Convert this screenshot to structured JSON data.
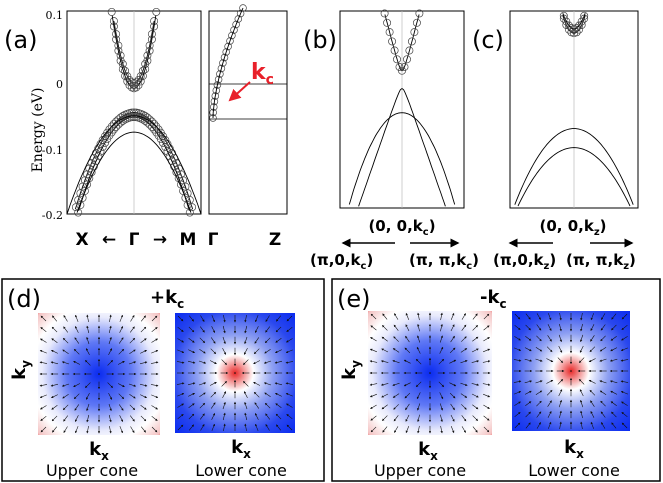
{
  "panels": {
    "a": {
      "label": "(a)",
      "ylabel": "Energy (eV)",
      "yticks": [
        "0.1",
        "0",
        "-0.1",
        "-0.2"
      ],
      "xlabels": [
        "X",
        "←",
        "Γ",
        "→",
        "M"
      ],
      "inset_xlabels": [
        "Γ",
        "Z"
      ],
      "inset_label": "k",
      "inset_label_sub": "c"
    },
    "b": {
      "label": "(b)",
      "top": "(0, 0,k",
      "top_sub": "c",
      "top_end": ")",
      "left": "(π,0,k",
      "left_sub": "c",
      "left_end": ")",
      "right": "(π, π,k",
      "right_sub": "c",
      "right_end": ")"
    },
    "c": {
      "label": "(c)",
      "top": "(0, 0,k",
      "top_sub": "z",
      "top_end": ")",
      "left": "(π,0,k",
      "left_sub": "z",
      "left_end": ")",
      "right": "(π, π,k",
      "right_sub": "z",
      "right_end": ")"
    },
    "d": {
      "label": "(d)",
      "kc": "+k",
      "kc_sub": "c",
      "ky": "k",
      "ky_sub": "y",
      "kx": "k",
      "kx_sub": "x",
      "upper": "Upper cone",
      "lower": "Lower cone"
    },
    "e": {
      "label": "(e)",
      "kc": "-k",
      "kc_sub": "c",
      "ky": "k",
      "ky_sub": "y",
      "kx": "k",
      "kx_sub": "x",
      "upper": "Upper cone",
      "lower": "Lower cone"
    }
  },
  "colors": {
    "accent_red": "#e8202a",
    "blue": "#0b2cf0",
    "red": "#e83030"
  },
  "chart_data": [
    {
      "type": "line",
      "panel": "a",
      "ylim": [
        -0.2,
        0.11
      ],
      "x_range": [
        -1,
        1
      ],
      "series": [
        {
          "curvature": 0.55,
          "offset": -0.0,
          "markers": true
        },
        {
          "curvature": 0.6,
          "offset": -0.05,
          "markers": true
        },
        {
          "curvature": 0.9,
          "offset": -0.05,
          "markers": false
        },
        {
          "curvature": 1.0,
          "offset": -0.075,
          "markers": false
        }
      ]
    },
    {
      "type": "line",
      "panel": "a-inset",
      "ylim": [
        -0.2,
        0.11
      ]
    },
    {
      "type": "line",
      "panel": "b",
      "ylim": [
        -0.2,
        0.11
      ],
      "dirac_point_energy": 0.0
    },
    {
      "type": "line",
      "panel": "c",
      "ylim": [
        -0.2,
        0.11
      ],
      "upper_min": 0.08,
      "lower_max": -0.075
    },
    {
      "type": "heatmap",
      "panel": "d-upper",
      "center_value": "blue",
      "corner_value": "red"
    },
    {
      "type": "heatmap",
      "panel": "d-lower",
      "center_value": "red",
      "edge_value": "blue"
    },
    {
      "type": "heatmap",
      "panel": "e-upper",
      "center_value": "blue",
      "corner_value": "red"
    },
    {
      "type": "heatmap",
      "panel": "e-lower",
      "center_value": "red",
      "edge_value": "blue"
    }
  ]
}
